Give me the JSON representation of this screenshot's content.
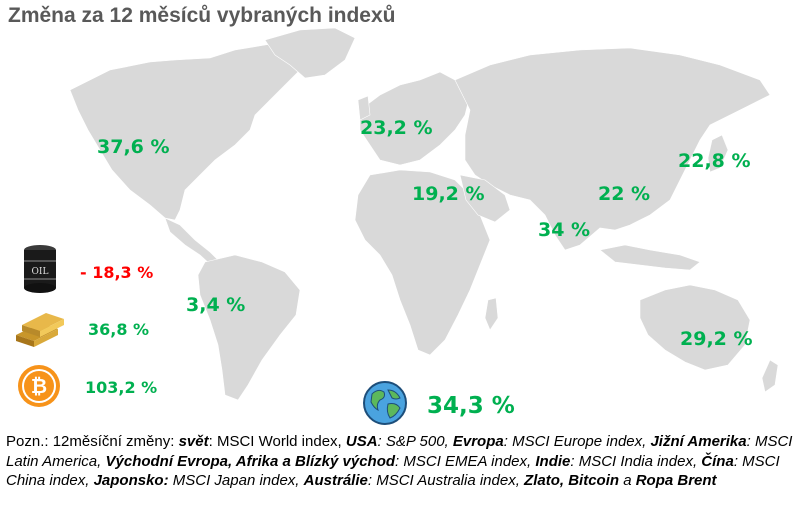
{
  "title": "Změna za 12 měsíců vybraných indexů",
  "colors": {
    "positive": "#00b050",
    "negative": "#ff0000",
    "map": "#d9d9d9",
    "title": "#595959"
  },
  "chart_data": {
    "type": "map",
    "values": [
      {
        "region": "USA",
        "label": "37,6 %",
        "value": 37.6
      },
      {
        "region": "Evropa",
        "label": "23,2 %",
        "value": 23.2
      },
      {
        "region": "Japonsko",
        "label": "22,8 %",
        "value": 22.8
      },
      {
        "region": "Afrika a Blízký východ",
        "label": "19,2 %",
        "value": 19.2
      },
      {
        "region": "Čína",
        "label": "22 %",
        "value": 22
      },
      {
        "region": "Indie",
        "label": "34 %",
        "value": 34
      },
      {
        "region": "Jižní Amerika",
        "label": "3,4 %",
        "value": 3.4
      },
      {
        "region": "Austrálie",
        "label": "29,2 %",
        "value": 29.2
      },
      {
        "region": "svět",
        "label": "34,3 %",
        "value": 34.3
      }
    ],
    "commodities": [
      {
        "name": "Ropa Brent",
        "icon": "oil-barrel-icon",
        "label": "- 18,3 %",
        "value": -18.3
      },
      {
        "name": "Zlato",
        "icon": "gold-bars-icon",
        "label": "36,8 %",
        "value": 36.8
      },
      {
        "name": "Bitcoin",
        "icon": "bitcoin-icon",
        "label": "103,2 %",
        "value": 103.2
      }
    ]
  },
  "note": {
    "prefix": "Pozn.: 12měsíční změny: ",
    "w_name": "svět",
    "w_idx": ": MSCI World index, ",
    "us_name": "USA",
    "us_idx": ": S&P 500, ",
    "eu_name": "Evropa",
    "eu_idx": ": MSCI Europe index, ",
    "la_name": "Jižní Amerika",
    "la_idx": ": MSCI Latin America, ",
    "emea_name": "Východní Evropa, Afrika a Blízký východ",
    "emea_idx": ": MSCI EMEA index, ",
    "in_name": "Indie",
    "in_idx": ": MSCI India index, ",
    "cn_name": "Čína",
    "cn_idx": ": MSCI China index, ",
    "jp_name": "Japonsko:",
    "jp_idx": " MSCI Japan index, ",
    "au_name": "Austrálie",
    "au_idx": ": MSCI Australia index, ",
    "tail_names": "Zlato, Bitcoin",
    "tail_and": " a ",
    "tail_last": "Ropa Brent"
  }
}
